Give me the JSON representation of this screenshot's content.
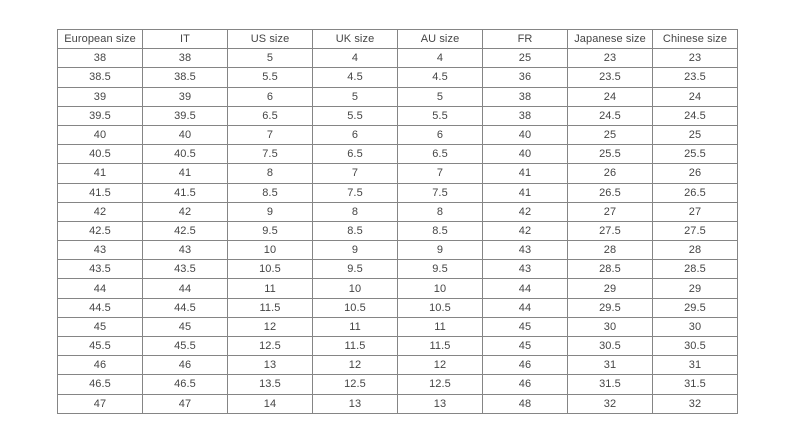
{
  "table": {
    "name": "shoe-size-conversion-table",
    "columns": [
      "European size",
      "IT",
      "US size",
      "UK size",
      "AU size",
      "FR",
      "Japanese size",
      "Chinese size"
    ],
    "rows": [
      [
        "38",
        "38",
        "5",
        "4",
        "4",
        "25",
        "23",
        "23"
      ],
      [
        "38.5",
        "38.5",
        "5.5",
        "4.5",
        "4.5",
        "36",
        "23.5",
        "23.5"
      ],
      [
        "39",
        "39",
        "6",
        "5",
        "5",
        "38",
        "24",
        "24"
      ],
      [
        "39.5",
        "39.5",
        "6.5",
        "5.5",
        "5.5",
        "38",
        "24.5",
        "24.5"
      ],
      [
        "40",
        "40",
        "7",
        "6",
        "6",
        "40",
        "25",
        "25"
      ],
      [
        "40.5",
        "40.5",
        "7.5",
        "6.5",
        "6.5",
        "40",
        "25.5",
        "25.5"
      ],
      [
        "41",
        "41",
        "8",
        "7",
        "7",
        "41",
        "26",
        "26"
      ],
      [
        "41.5",
        "41.5",
        "8.5",
        "7.5",
        "7.5",
        "41",
        "26.5",
        "26.5"
      ],
      [
        "42",
        "42",
        "9",
        "8",
        "8",
        "42",
        "27",
        "27"
      ],
      [
        "42.5",
        "42.5",
        "9.5",
        "8.5",
        "8.5",
        "42",
        "27.5",
        "27.5"
      ],
      [
        "43",
        "43",
        "10",
        "9",
        "9",
        "43",
        "28",
        "28"
      ],
      [
        "43.5",
        "43.5",
        "10.5",
        "9.5",
        "9.5",
        "43",
        "28.5",
        "28.5"
      ],
      [
        "44",
        "44",
        "11",
        "10",
        "10",
        "44",
        "29",
        "29"
      ],
      [
        "44.5",
        "44.5",
        "11.5",
        "10.5",
        "10.5",
        "44",
        "29.5",
        "29.5"
      ],
      [
        "45",
        "45",
        "12",
        "11",
        "11",
        "45",
        "30",
        "30"
      ],
      [
        "45.5",
        "45.5",
        "12.5",
        "11.5",
        "11.5",
        "45",
        "30.5",
        "30.5"
      ],
      [
        "46",
        "46",
        "13",
        "12",
        "12",
        "46",
        "31",
        "31"
      ],
      [
        "46.5",
        "46.5",
        "13.5",
        "12.5",
        "12.5",
        "46",
        "31.5",
        "31.5"
      ],
      [
        "47",
        "47",
        "14",
        "13",
        "13",
        "48",
        "32",
        "32"
      ]
    ]
  },
  "colors": {
    "border": "#858585",
    "text": "#454545",
    "background": "#ffffff"
  }
}
